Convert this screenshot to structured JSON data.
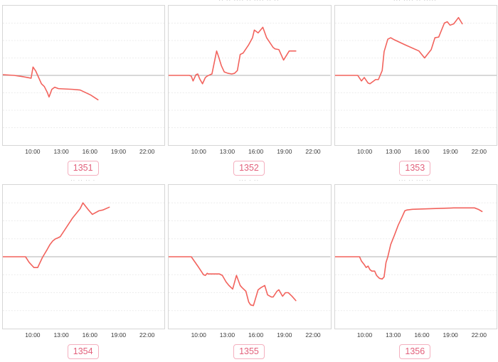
{
  "style": {
    "line_color": "#f2625c",
    "zero_line_color": "#b0b0b0",
    "grid_color": "#ececec",
    "plot_border_color": "#d6d6d6",
    "badge_text_color": "#e2607b",
    "badge_border_color": "#f4b0bf",
    "tick_label_color": "#3a3a3a"
  },
  "chart_data": [
    {
      "id_label": "1351",
      "type": "line",
      "title_fragment": "",
      "x_axis": "time of day",
      "y_axis": "relative value vs baseline (no y tick labels shown)",
      "baseline": 0,
      "x_ticks": [
        "10:00",
        "13:00",
        "16:00",
        "19:00",
        "22:00"
      ],
      "points": [
        [
          6.8,
          1
        ],
        [
          8.0,
          0
        ],
        [
          9.0,
          -2
        ],
        [
          9.4,
          -3
        ],
        [
          9.8,
          -4
        ],
        [
          10.0,
          12
        ],
        [
          10.3,
          6
        ],
        [
          10.9,
          -12
        ],
        [
          11.2,
          -16
        ],
        [
          11.5,
          -24
        ],
        [
          11.7,
          -31
        ],
        [
          12.0,
          -20
        ],
        [
          12.3,
          -17
        ],
        [
          12.7,
          -19
        ],
        [
          14.2,
          -20
        ],
        [
          15.0,
          -21
        ],
        [
          16.1,
          -28
        ],
        [
          16.9,
          -35
        ]
      ]
    },
    {
      "id_label": "1352",
      "type": "line",
      "title_fragment": "·· ·· ···· ·· ···· ·· ··",
      "x_axis": "time of day",
      "y_axis": "relative value vs baseline (no y tick labels shown)",
      "baseline": 0,
      "x_ticks": [
        "10:00",
        "13:00",
        "16:00",
        "19:00",
        "22:00"
      ],
      "points": [
        [
          6.8,
          0
        ],
        [
          9.0,
          0
        ],
        [
          9.2,
          -1
        ],
        [
          9.4,
          -8
        ],
        [
          9.7,
          1
        ],
        [
          9.9,
          2
        ],
        [
          10.1,
          -5
        ],
        [
          10.4,
          -12
        ],
        [
          10.7,
          -3
        ],
        [
          10.9,
          -1
        ],
        [
          11.2,
          1
        ],
        [
          11.4,
          2
        ],
        [
          11.9,
          35
        ],
        [
          12.1,
          27
        ],
        [
          12.4,
          14
        ],
        [
          12.7,
          5
        ],
        [
          13.1,
          3
        ],
        [
          13.5,
          2
        ],
        [
          13.8,
          3
        ],
        [
          14.1,
          7
        ],
        [
          14.4,
          30
        ],
        [
          14.7,
          32
        ],
        [
          15.3,
          44
        ],
        [
          15.7,
          54
        ],
        [
          15.9,
          65
        ],
        [
          16.3,
          61
        ],
        [
          16.8,
          69
        ],
        [
          17.2,
          54
        ],
        [
          17.9,
          40
        ],
        [
          18.1,
          38
        ],
        [
          18.5,
          37
        ],
        [
          19.0,
          22
        ],
        [
          19.6,
          35
        ],
        [
          20.3,
          35
        ]
      ]
    },
    {
      "id_label": "1353",
      "type": "line",
      "title_fragment": "··· ···· ·· ·····",
      "x_axis": "time of day",
      "y_axis": "relative value vs baseline (no y tick labels shown)",
      "baseline": 0,
      "x_ticks": [
        "10:00",
        "13:00",
        "16:00",
        "19:00",
        "22:00"
      ],
      "points": [
        [
          6.8,
          0
        ],
        [
          9.2,
          0
        ],
        [
          9.6,
          -8
        ],
        [
          9.9,
          -3
        ],
        [
          10.3,
          -11
        ],
        [
          10.5,
          -12
        ],
        [
          11.1,
          -6
        ],
        [
          11.4,
          -6
        ],
        [
          11.8,
          7
        ],
        [
          12.0,
          34
        ],
        [
          12.4,
          52
        ],
        [
          12.7,
          54
        ],
        [
          13.1,
          51
        ],
        [
          14.2,
          44
        ],
        [
          15.7,
          35
        ],
        [
          16.3,
          25
        ],
        [
          17.0,
          37
        ],
        [
          17.4,
          54
        ],
        [
          17.8,
          55
        ],
        [
          18.4,
          75
        ],
        [
          18.7,
          77
        ],
        [
          19.0,
          72
        ],
        [
          19.4,
          74
        ],
        [
          19.9,
          83
        ],
        [
          20.3,
          74
        ]
      ]
    },
    {
      "id_label": "1354",
      "type": "line",
      "title_fragment": "·· ·· ·· ·",
      "x_axis": "time of day",
      "y_axis": "relative value vs baseline (no y tick labels shown)",
      "baseline": 0,
      "x_ticks": [
        "10:00",
        "13:00",
        "16:00",
        "19:00",
        "22:00"
      ],
      "points": [
        [
          6.8,
          0
        ],
        [
          9.2,
          0
        ],
        [
          9.6,
          -8
        ],
        [
          10.1,
          -15
        ],
        [
          10.5,
          -15
        ],
        [
          11.0,
          -1
        ],
        [
          11.5,
          10
        ],
        [
          11.8,
          17
        ],
        [
          12.1,
          22
        ],
        [
          12.4,
          25
        ],
        [
          12.6,
          26
        ],
        [
          12.9,
          28
        ],
        [
          13.5,
          40
        ],
        [
          14.2,
          54
        ],
        [
          15.0,
          67
        ],
        [
          15.3,
          75
        ],
        [
          15.9,
          65
        ],
        [
          16.3,
          59
        ],
        [
          17.0,
          64
        ],
        [
          17.4,
          65
        ],
        [
          18.1,
          69
        ]
      ]
    },
    {
      "id_label": "1355",
      "type": "line",
      "title_fragment": "··· · ··",
      "x_axis": "time of day",
      "y_axis": "relative value vs baseline (no y tick labels shown)",
      "baseline": 0,
      "x_ticks": [
        "10:00",
        "13:00",
        "16:00",
        "19:00",
        "22:00"
      ],
      "points": [
        [
          6.8,
          0
        ],
        [
          9.2,
          0
        ],
        [
          10.0,
          -15
        ],
        [
          10.3,
          -21
        ],
        [
          10.5,
          -25
        ],
        [
          10.7,
          -26
        ],
        [
          10.9,
          -23
        ],
        [
          11.0,
          -24
        ],
        [
          12.2,
          -24
        ],
        [
          12.5,
          -26
        ],
        [
          12.9,
          -35
        ],
        [
          13.2,
          -40
        ],
        [
          13.6,
          -45
        ],
        [
          14.0,
          -26
        ],
        [
          14.4,
          -40
        ],
        [
          14.6,
          -43
        ],
        [
          15.0,
          -48
        ],
        [
          15.3,
          -63
        ],
        [
          15.5,
          -67
        ],
        [
          15.8,
          -68
        ],
        [
          16.3,
          -46
        ],
        [
          16.6,
          -43
        ],
        [
          17.0,
          -40
        ],
        [
          17.3,
          -53
        ],
        [
          17.7,
          -56
        ],
        [
          17.9,
          -56
        ],
        [
          18.3,
          -48
        ],
        [
          18.5,
          -46
        ],
        [
          18.8,
          -53
        ],
        [
          18.9,
          -55
        ],
        [
          19.2,
          -50
        ],
        [
          19.5,
          -50
        ],
        [
          19.9,
          -55
        ],
        [
          20.3,
          -61
        ]
      ]
    },
    {
      "id_label": "1356",
      "type": "line",
      "title_fragment": "··· ·· ··· ··",
      "x_axis": "time of day",
      "y_axis": "relative value vs baseline (no y tick labels shown)",
      "baseline": 0,
      "x_ticks": [
        "10:00",
        "13:00",
        "16:00",
        "19:00",
        "22:00"
      ],
      "points": [
        [
          6.8,
          0
        ],
        [
          9.4,
          0
        ],
        [
          9.6,
          -6
        ],
        [
          9.9,
          -11
        ],
        [
          10.1,
          -15
        ],
        [
          10.3,
          -13
        ],
        [
          10.5,
          -18
        ],
        [
          10.7,
          -20
        ],
        [
          11.0,
          -20
        ],
        [
          11.2,
          -26
        ],
        [
          11.5,
          -30
        ],
        [
          11.8,
          -31
        ],
        [
          12.0,
          -28
        ],
        [
          12.2,
          -8
        ],
        [
          12.4,
          0
        ],
        [
          12.7,
          17
        ],
        [
          13.1,
          30
        ],
        [
          13.5,
          44
        ],
        [
          13.9,
          55
        ],
        [
          14.2,
          64
        ],
        [
          14.4,
          65
        ],
        [
          15.0,
          66
        ],
        [
          17.2,
          67
        ],
        [
          19.4,
          68
        ],
        [
          21.6,
          68
        ],
        [
          22.0,
          66
        ],
        [
          22.4,
          63
        ]
      ]
    }
  ]
}
